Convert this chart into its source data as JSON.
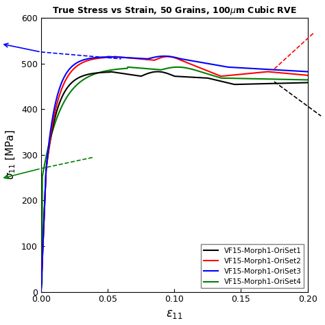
{
  "title": "True Stress vs Strain, 50 Grains, 100μm Cubic RVE",
  "xlabel": "ε₁₁",
  "ylabel": "σ₁₁ [MPa]",
  "xlim": [
    0,
    0.2
  ],
  "ylim": [
    0,
    600
  ],
  "xticks": [
    0,
    0.05,
    0.1,
    0.15,
    0.2
  ],
  "yticks": [
    0,
    100,
    200,
    300,
    400,
    500,
    600
  ],
  "legend_labels": [
    "VF15-Morph1-OriSet1",
    "VF15-Morph1-OriSet2",
    "VF15-Morph1-OriSet3",
    "VF15-Morph1-OriSet4"
  ],
  "line_colors": [
    "black",
    "red",
    "blue",
    "green"
  ],
  "background_color": "#ffffff"
}
